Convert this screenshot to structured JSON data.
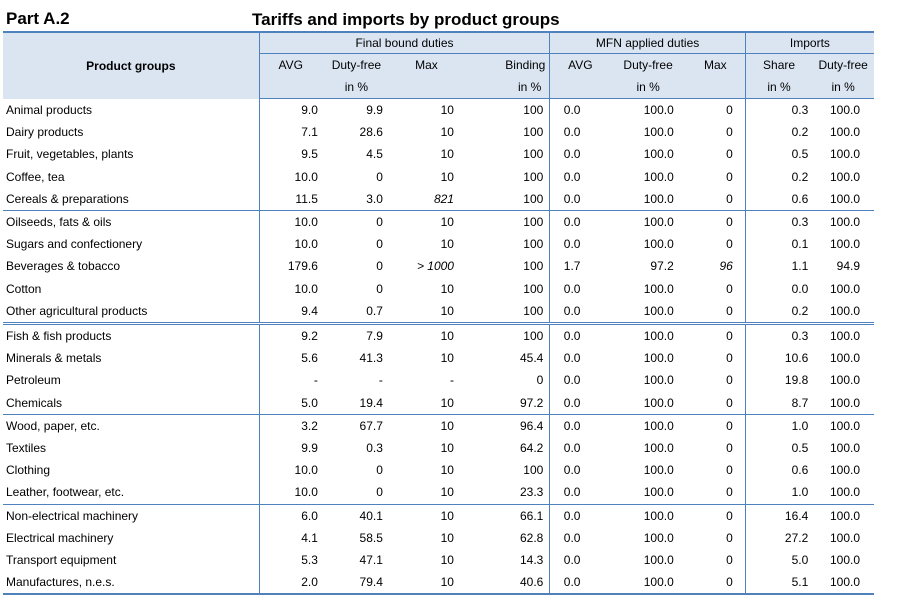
{
  "part_label": "Part A.2",
  "title": "Tariffs and imports by product groups",
  "header": {
    "product_groups": "Product groups",
    "groups": {
      "final_bound": "Final bound duties",
      "mfn_applied": "MFN applied duties",
      "imports": "Imports"
    },
    "cols": [
      "AVG",
      "Duty-free",
      "Max",
      "Binding",
      "AVG",
      "Duty-free",
      "Max",
      "Share",
      "Duty-free"
    ],
    "units": [
      "",
      "in %",
      "",
      "in %",
      "",
      "in %",
      "",
      "in %",
      "in %"
    ]
  },
  "rows": [
    {
      "name": "Animal products",
      "v": [
        "9.0",
        "9.9",
        "10",
        "100",
        "0.0",
        "100.0",
        "0",
        "0.3",
        "100.0"
      ]
    },
    {
      "name": "Dairy products",
      "v": [
        "7.1",
        "28.6",
        "10",
        "100",
        "0.0",
        "100.0",
        "0",
        "0.2",
        "100.0"
      ]
    },
    {
      "name": "Fruit, vegetables, plants",
      "v": [
        "9.5",
        "4.5",
        "10",
        "100",
        "0.0",
        "100.0",
        "0",
        "0.5",
        "100.0"
      ]
    },
    {
      "name": "Coffee, tea",
      "v": [
        "10.0",
        "0",
        "10",
        "100",
        "0.0",
        "100.0",
        "0",
        "0.2",
        "100.0"
      ]
    },
    {
      "name": "Cereals & preparations",
      "v": [
        "11.5",
        "3.0",
        "821",
        "100",
        "0.0",
        "100.0",
        "0",
        "0.6",
        "100.0"
      ]
    },
    {
      "name": "Oilseeds, fats & oils",
      "v": [
        "10.0",
        "0",
        "10",
        "100",
        "0.0",
        "100.0",
        "0",
        "0.3",
        "100.0"
      ]
    },
    {
      "name": "Sugars and confectionery",
      "v": [
        "10.0",
        "0",
        "10",
        "100",
        "0.0",
        "100.0",
        "0",
        "0.1",
        "100.0"
      ]
    },
    {
      "name": "Beverages & tobacco",
      "v": [
        "179.6",
        "0",
        "> 1000",
        "100",
        "1.7",
        "97.2",
        "96",
        "1.1",
        "94.9"
      ]
    },
    {
      "name": "Cotton",
      "v": [
        "10.0",
        "0",
        "10",
        "100",
        "0.0",
        "100.0",
        "0",
        "0.0",
        "100.0"
      ]
    },
    {
      "name": "Other agricultural products",
      "v": [
        "9.4",
        "0.7",
        "10",
        "100",
        "0.0",
        "100.0",
        "0",
        "0.2",
        "100.0"
      ]
    },
    {
      "name": "Fish & fish products",
      "v": [
        "9.2",
        "7.9",
        "10",
        "100",
        "0.0",
        "100.0",
        "0",
        "0.3",
        "100.0"
      ]
    },
    {
      "name": "Minerals & metals",
      "v": [
        "5.6",
        "41.3",
        "10",
        "45.4",
        "0.0",
        "100.0",
        "0",
        "10.6",
        "100.0"
      ]
    },
    {
      "name": "Petroleum",
      "v": [
        "-",
        "-",
        "-",
        "0",
        "0.0",
        "100.0",
        "0",
        "19.8",
        "100.0"
      ]
    },
    {
      "name": "Chemicals",
      "v": [
        "5.0",
        "19.4",
        "10",
        "97.2",
        "0.0",
        "100.0",
        "0",
        "8.7",
        "100.0"
      ]
    },
    {
      "name": "Wood, paper, etc.",
      "v": [
        "3.2",
        "67.7",
        "10",
        "96.4",
        "0.0",
        "100.0",
        "0",
        "1.0",
        "100.0"
      ]
    },
    {
      "name": "Textiles",
      "v": [
        "9.9",
        "0.3",
        "10",
        "64.2",
        "0.0",
        "100.0",
        "0",
        "0.5",
        "100.0"
      ]
    },
    {
      "name": "Clothing",
      "v": [
        "10.0",
        "0",
        "10",
        "100",
        "0.0",
        "100.0",
        "0",
        "0.6",
        "100.0"
      ]
    },
    {
      "name": "Leather, footwear, etc.",
      "v": [
        "10.0",
        "0",
        "10",
        "23.3",
        "0.0",
        "100.0",
        "0",
        "1.0",
        "100.0"
      ]
    },
    {
      "name": "Non-electrical machinery",
      "v": [
        "6.0",
        "40.1",
        "10",
        "66.1",
        "0.0",
        "100.0",
        "0",
        "16.4",
        "100.0"
      ]
    },
    {
      "name": "Electrical machinery",
      "v": [
        "4.1",
        "58.5",
        "10",
        "62.8",
        "0.0",
        "100.0",
        "0",
        "27.2",
        "100.0"
      ]
    },
    {
      "name": "Transport equipment",
      "v": [
        "5.3",
        "47.1",
        "10",
        "14.3",
        "0.0",
        "100.0",
        "0",
        "5.0",
        "100.0"
      ]
    },
    {
      "name": "Manufactures, n.e.s.",
      "v": [
        "2.0",
        "79.4",
        "10",
        "40.6",
        "0.0",
        "100.0",
        "0",
        "5.1",
        "100.0"
      ]
    }
  ]
}
